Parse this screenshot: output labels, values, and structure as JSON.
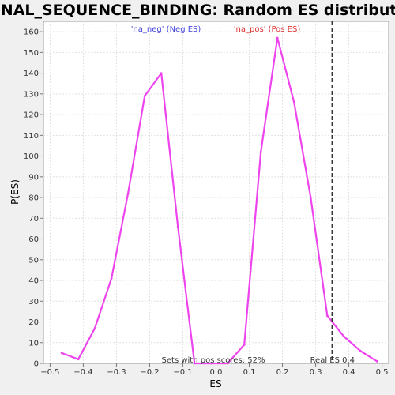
{
  "chart_data": {
    "type": "line",
    "title": "SIGNAL_SEQUENCE_BINDING: Random ES distribution",
    "xlabel": "ES",
    "ylabel": "P(ES)",
    "xlim": [
      -0.52,
      0.52
    ],
    "ylim": [
      0,
      165
    ],
    "xticks": [
      -0.5,
      -0.4,
      -0.3,
      -0.2,
      -0.1,
      0.0,
      0.1,
      0.2,
      0.3,
      0.4,
      0.5
    ],
    "xtick_labels": [
      "−0.5",
      "−0.4",
      "−0.3",
      "−0.2",
      "−0.1",
      "0.0",
      "0.1",
      "0.2",
      "0.3",
      "0.4",
      "0.5"
    ],
    "yticks": [
      0,
      10,
      20,
      30,
      40,
      50,
      60,
      70,
      80,
      90,
      100,
      110,
      120,
      130,
      140,
      150,
      160
    ],
    "grid": true,
    "series": [
      {
        "color": "#ee44ee",
        "points": [
          [
            -0.465,
            5
          ],
          [
            -0.415,
            2
          ],
          [
            -0.365,
            17
          ],
          [
            -0.315,
            41
          ],
          [
            -0.265,
            82
          ],
          [
            -0.215,
            129
          ],
          [
            -0.165,
            140
          ],
          [
            -0.115,
            66
          ],
          [
            -0.065,
            0
          ],
          [
            -0.015,
            0
          ],
          [
            0.035,
            0
          ],
          [
            0.085,
            9
          ],
          [
            0.135,
            102
          ],
          [
            0.185,
            157
          ],
          [
            0.235,
            126
          ],
          [
            0.285,
            80
          ],
          [
            0.335,
            23
          ],
          [
            0.385,
            13
          ],
          [
            0.435,
            6
          ],
          [
            0.485,
            1
          ]
        ]
      }
    ],
    "legend": [
      {
        "label": "'na_neg' (Neg ES)",
        "color": "#4444dd"
      },
      {
        "label": "'na_pos' (Pos ES)",
        "color": "#dd3333"
      }
    ],
    "real_es": {
      "x": 0.35,
      "label": "Real ES 0.4"
    },
    "annotation": "Sets with pos scores: 52%"
  }
}
